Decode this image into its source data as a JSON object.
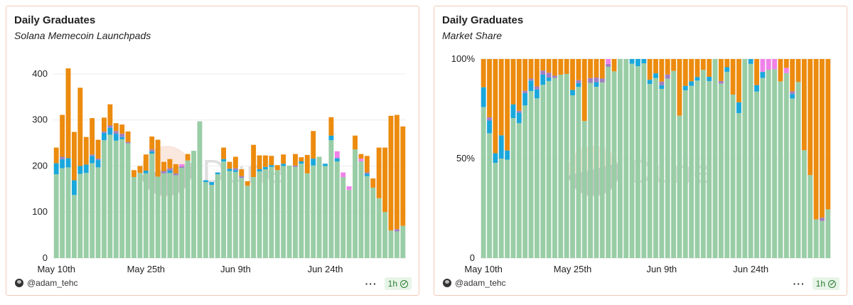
{
  "colors": {
    "green": "#99cda6",
    "orange": "#ec8b0e",
    "blue": "#1aa7db",
    "purple": "#a07fc0",
    "pink": "#ef82e8",
    "panel_border": "#f3c9b8"
  },
  "watermark": "Dune",
  "footer": {
    "author": "@adam_tehc",
    "refresh": "1h"
  },
  "panels": [
    {
      "title": "Daily Graduates",
      "subtitle": "Solana Memecoin Launchpads"
    },
    {
      "title": "Daily Graduates",
      "subtitle": "Market Share"
    }
  ],
  "chart_data": [
    {
      "type": "bar",
      "stacked": true,
      "title": "Daily Graduates",
      "subtitle": "Solana Memecoin Launchpads",
      "ylim": [
        0,
        420
      ],
      "yticks": [
        0,
        100,
        200,
        300,
        400
      ],
      "x_tick_labels": [
        {
          "label": "May 10th",
          "index": 0
        },
        {
          "label": "May 25th",
          "index": 15
        },
        {
          "label": "Jun 9th",
          "index": 30
        },
        {
          "label": "Jun 24th",
          "index": 45
        }
      ],
      "series": [
        {
          "color": "#99cda6",
          "values": [
            182,
            195,
            197,
            137,
            183,
            185,
            206,
            197,
            256,
            268,
            255,
            258,
            249,
            176,
            185,
            184,
            227,
            177,
            184,
            185,
            180,
            196,
            212,
            233,
            297,
            165,
            159,
            182,
            210,
            189,
            187,
            174,
            157,
            176,
            188,
            193,
            198,
            191,
            200,
            201,
            198,
            205,
            184,
            201,
            220,
            200,
            256,
            210,
            176,
            148,
            236,
            210,
            178,
            153,
            130,
            100,
            60,
            58,
            70
          ]
        },
        {
          "color": "#1aa7db",
          "values": [
            24,
            20,
            20,
            32,
            17,
            18,
            16,
            16,
            16,
            15,
            15,
            5,
            0,
            0,
            0,
            6,
            5,
            0,
            0,
            5,
            0,
            0,
            0,
            0,
            0,
            4,
            6,
            4,
            5,
            5,
            4,
            0,
            0,
            0,
            5,
            5,
            4,
            0,
            5,
            0,
            0,
            5,
            0,
            15,
            0,
            5,
            10,
            7,
            0,
            0,
            0,
            0,
            5,
            0,
            0,
            0,
            0,
            0,
            0
          ]
        },
        {
          "color": "#a07fc0",
          "values": [
            0,
            5,
            0,
            0,
            0,
            0,
            3,
            3,
            3,
            5,
            6,
            7,
            3,
            0,
            0,
            0,
            4,
            0,
            5,
            5,
            4,
            3,
            0,
            0,
            0,
            0,
            0,
            0,
            0,
            0,
            4,
            4,
            0,
            0,
            0,
            0,
            0,
            0,
            0,
            0,
            3,
            0,
            0,
            0,
            0,
            0,
            0,
            0,
            0,
            0,
            0,
            0,
            3,
            0,
            0,
            0,
            0,
            5,
            0
          ]
        },
        {
          "color": "#ef82e8",
          "values": [
            0,
            0,
            0,
            0,
            0,
            0,
            0,
            0,
            0,
            0,
            0,
            0,
            0,
            0,
            0,
            0,
            0,
            0,
            0,
            0,
            0,
            5,
            0,
            0,
            0,
            0,
            0,
            0,
            0,
            0,
            0,
            0,
            0,
            0,
            0,
            0,
            0,
            0,
            0,
            0,
            0,
            0,
            0,
            0,
            0,
            0,
            0,
            15,
            10,
            8,
            0,
            6,
            0,
            0,
            0,
            0,
            0,
            0,
            0
          ]
        },
        {
          "color": "#ec8b0e",
          "values": [
            34,
            91,
            195,
            105,
            170,
            60,
            79,
            41,
            30,
            46,
            17,
            20,
            23,
            15,
            15,
            35,
            28,
            80,
            20,
            20,
            20,
            0,
            14,
            0,
            0,
            0,
            0,
            0,
            25,
            15,
            25,
            15,
            10,
            70,
            30,
            25,
            20,
            11,
            20,
            0,
            25,
            9,
            40,
            60,
            0,
            0,
            40,
            0,
            0,
            0,
            30,
            10,
            36,
            20,
            110,
            140,
            249,
            248,
            216
          ]
        }
      ]
    },
    {
      "type": "bar",
      "stacked": true,
      "normalized": true,
      "title": "Daily Graduates",
      "subtitle": "Market Share",
      "ylim": [
        0,
        100
      ],
      "yticks": [
        "0",
        "50%",
        "100%"
      ]
    }
  ]
}
